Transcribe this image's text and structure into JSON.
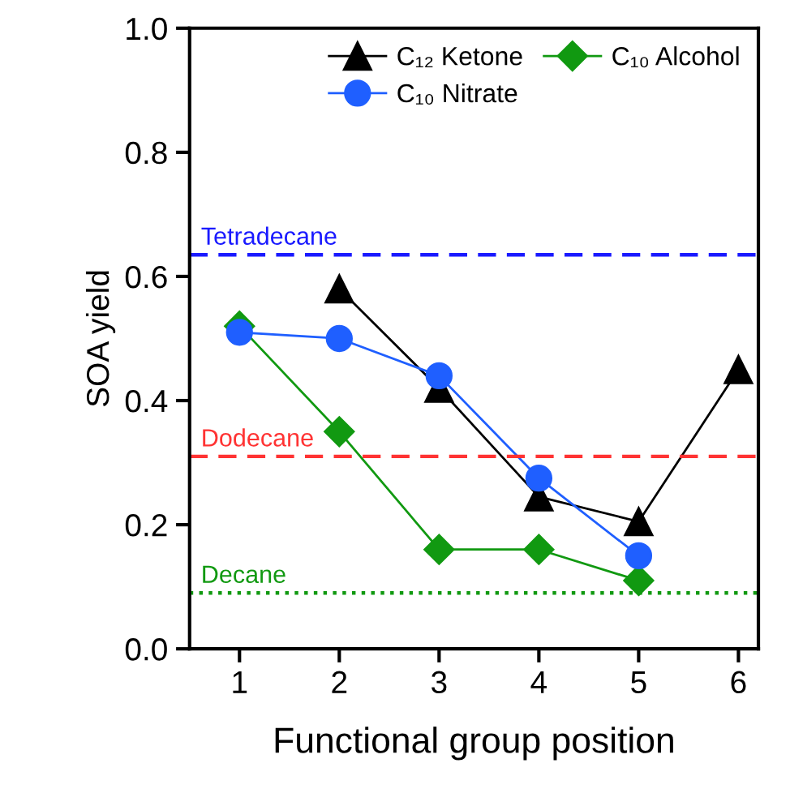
{
  "chart_data": {
    "type": "line",
    "xlabel": "Functional group position",
    "ylabel": "SOA yield",
    "xlim": [
      0.5,
      6.2
    ],
    "ylim": [
      0,
      1.0
    ],
    "xticks": [
      1,
      2,
      3,
      4,
      5,
      6
    ],
    "yticks": [
      {
        "value": 0,
        "label": "0.0"
      },
      0.2,
      0.4,
      0.6,
      0.8,
      {
        "value": 1,
        "label": "1.0"
      }
    ],
    "grid": false,
    "legend": "top right",
    "series": [
      {
        "name": "C₁₂ Ketone",
        "color": "#000000",
        "marker": "triangle",
        "x": [
          2,
          3,
          4,
          5,
          6
        ],
        "values": [
          0.58,
          0.42,
          0.245,
          0.205,
          0.45
        ]
      },
      {
        "name": "C₁₀ Alcohol",
        "color": "#119911",
        "marker": "diamond",
        "x": [
          1,
          2,
          3,
          4,
          5
        ],
        "values": [
          0.52,
          0.35,
          0.16,
          0.16,
          0.11
        ]
      },
      {
        "name": "C₁₀ Nitrate",
        "color": "#1f5fff",
        "marker": "circle",
        "x": [
          1,
          2,
          3,
          4,
          5
        ],
        "values": [
          0.51,
          0.5,
          0.44,
          0.275,
          0.15
        ]
      }
    ],
    "ref_lines": [
      {
        "axis": "y",
        "value": 0.635,
        "label": "Tetradecane",
        "color": "#1a1aff",
        "line_style": "dashed"
      },
      {
        "axis": "y",
        "value": 0.31,
        "label": "Dodecane",
        "color": "#ff3333",
        "line_style": "dashed"
      },
      {
        "axis": "y",
        "value": 0.09,
        "label": "Decane",
        "color": "#119911",
        "line_style": "dotted"
      }
    ]
  }
}
